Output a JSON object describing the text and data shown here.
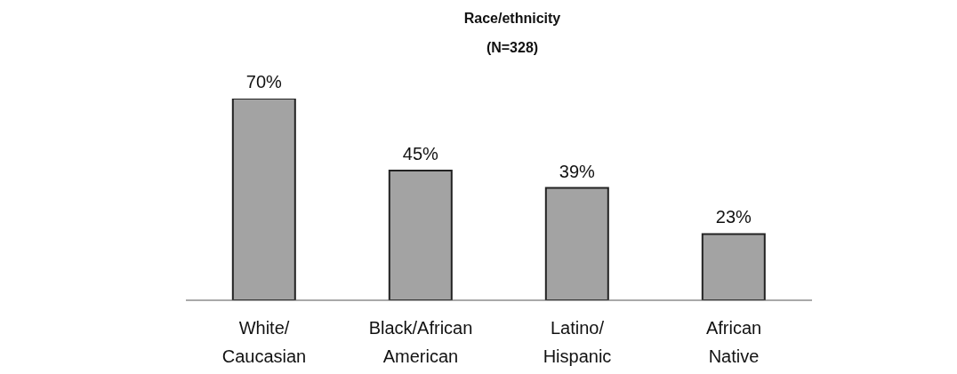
{
  "chart_data": {
    "type": "bar",
    "title": "Race/ethnicity",
    "subtitle": "(N=328)",
    "categories": [
      "White/\nCaucasian",
      "Black/African\nAmerican",
      "Latino/\nHispanic",
      "African\nNative"
    ],
    "values": [
      70,
      45,
      39,
      23
    ],
    "value_labels": [
      "70%",
      "45%",
      "39%",
      "23%"
    ],
    "color": "#a3a3a3",
    "grid": false,
    "legend": false
  }
}
